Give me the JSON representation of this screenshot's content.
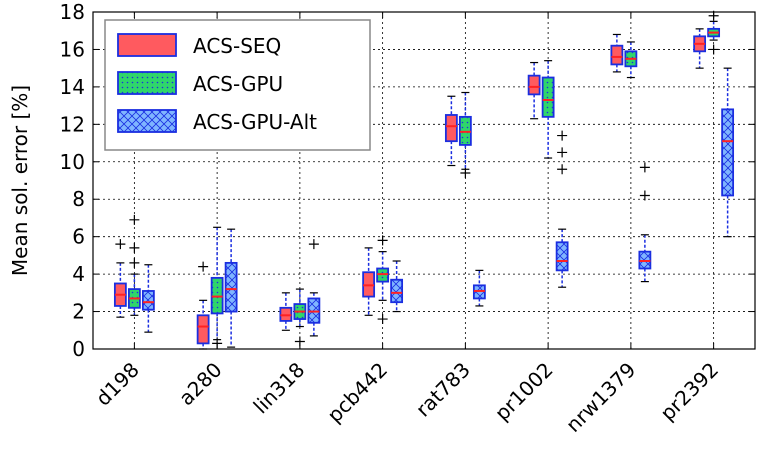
{
  "chart_data": {
    "type": "box",
    "ylabel": "Mean sol. error [%]",
    "ylim": [
      0,
      18
    ],
    "yticks": [
      0,
      2,
      4,
      6,
      8,
      10,
      12,
      14,
      16,
      18
    ],
    "grid": true,
    "legend_position": "top-left",
    "categories": [
      "d198",
      "a280",
      "lin318",
      "pcb442",
      "rat783",
      "pr1002",
      "nrw1379",
      "pr2392"
    ],
    "series": [
      {
        "name": "ACS-SEQ",
        "color": "#ff5a5f",
        "pattern": "solid",
        "boxes": [
          {
            "whisker_low": 1.7,
            "q1": 2.3,
            "median": 2.9,
            "q3": 3.5,
            "whisker_high": 4.6,
            "outliers": [
              5.6
            ]
          },
          {
            "whisker_low": 0.0,
            "q1": 0.3,
            "median": 1.2,
            "q3": 1.8,
            "whisker_high": 2.6,
            "outliers": [
              4.4
            ]
          },
          {
            "whisker_low": 1.0,
            "q1": 1.5,
            "median": 1.8,
            "q3": 2.2,
            "whisker_high": 3.0,
            "outliers": []
          },
          {
            "whisker_low": 1.8,
            "q1": 2.8,
            "median": 3.4,
            "q3": 4.1,
            "whisker_high": 5.4,
            "outliers": []
          },
          {
            "whisker_low": 9.8,
            "q1": 11.1,
            "median": 11.9,
            "q3": 12.5,
            "whisker_high": 13.5,
            "outliers": []
          },
          {
            "whisker_low": 12.3,
            "q1": 13.6,
            "median": 14.0,
            "q3": 14.6,
            "whisker_high": 15.3,
            "outliers": []
          },
          {
            "whisker_low": 14.8,
            "q1": 15.2,
            "median": 15.6,
            "q3": 16.2,
            "whisker_high": 16.8,
            "outliers": []
          },
          {
            "whisker_low": 15.0,
            "q1": 15.9,
            "median": 16.3,
            "q3": 16.7,
            "whisker_high": 17.1,
            "outliers": []
          }
        ]
      },
      {
        "name": "ACS-GPU",
        "color": "#2fd66a",
        "pattern": "dotted",
        "boxes": [
          {
            "whisker_low": 1.8,
            "q1": 2.2,
            "median": 2.7,
            "q3": 3.2,
            "whisker_high": 4.0,
            "outliers": [
              6.9,
              5.4,
              4.6
            ]
          },
          {
            "whisker_low": 0.5,
            "q1": 1.9,
            "median": 2.8,
            "q3": 3.8,
            "whisker_high": 6.5,
            "outliers": [
              0.3
            ]
          },
          {
            "whisker_low": 1.2,
            "q1": 1.6,
            "median": 2.0,
            "q3": 2.4,
            "whisker_high": 3.2,
            "outliers": [
              0.4
            ]
          },
          {
            "whisker_low": 2.6,
            "q1": 3.6,
            "median": 4.0,
            "q3": 4.3,
            "whisker_high": 5.2,
            "outliers": [
              5.8,
              1.6
            ]
          },
          {
            "whisker_low": 9.6,
            "q1": 10.9,
            "median": 11.6,
            "q3": 12.4,
            "whisker_high": 13.7,
            "outliers": [
              9.4
            ]
          },
          {
            "whisker_low": 10.2,
            "q1": 12.4,
            "median": 13.3,
            "q3": 14.5,
            "whisker_high": 15.4,
            "outliers": []
          },
          {
            "whisker_low": 14.5,
            "q1": 15.1,
            "median": 15.5,
            "q3": 15.9,
            "whisker_high": 16.4,
            "outliers": []
          },
          {
            "whisker_low": 16.5,
            "q1": 16.7,
            "median": 16.9,
            "q3": 17.1,
            "whisker_high": 17.5,
            "outliers": [
              16.0,
              17.8
            ]
          }
        ]
      },
      {
        "name": "ACS-GPU-Alt",
        "color": "#7fb5ff",
        "pattern": "hatched",
        "boxes": [
          {
            "whisker_low": 0.9,
            "q1": 2.1,
            "median": 2.5,
            "q3": 3.1,
            "whisker_high": 4.5,
            "outliers": []
          },
          {
            "whisker_low": 0.1,
            "q1": 2.0,
            "median": 3.2,
            "q3": 4.6,
            "whisker_high": 6.4,
            "outliers": []
          },
          {
            "whisker_low": 0.7,
            "q1": 1.4,
            "median": 2.0,
            "q3": 2.7,
            "whisker_high": 3.0,
            "outliers": [
              5.6
            ]
          },
          {
            "whisker_low": 2.0,
            "q1": 2.5,
            "median": 3.0,
            "q3": 3.7,
            "whisker_high": 4.7,
            "outliers": []
          },
          {
            "whisker_low": 2.3,
            "q1": 2.7,
            "median": 3.1,
            "q3": 3.4,
            "whisker_high": 4.2,
            "outliers": []
          },
          {
            "whisker_low": 3.3,
            "q1": 4.2,
            "median": 4.7,
            "q3": 5.7,
            "whisker_high": 6.4,
            "outliers": [
              11.4,
              10.5,
              9.6
            ]
          },
          {
            "whisker_low": 3.6,
            "q1": 4.3,
            "median": 4.7,
            "q3": 5.2,
            "whisker_high": 6.1,
            "outliers": [
              9.7,
              8.2
            ]
          },
          {
            "whisker_low": 6.0,
            "q1": 8.2,
            "median": 11.1,
            "q3": 12.8,
            "whisker_high": 15.0,
            "outliers": []
          }
        ]
      }
    ]
  }
}
